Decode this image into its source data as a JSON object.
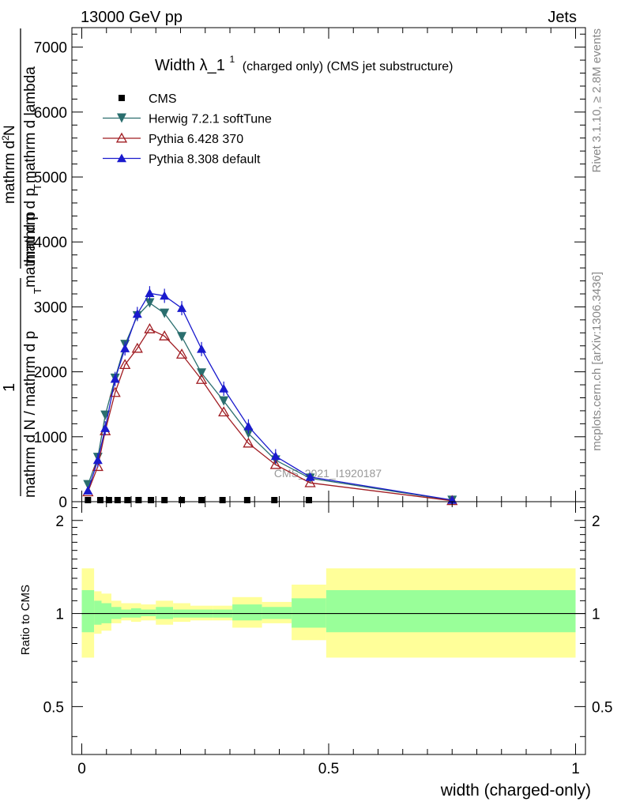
{
  "header": {
    "left": "13000 GeV pp",
    "right": "Jets"
  },
  "side": {
    "rivet": "Rivet 3.1.10, ≥ 2.8M events",
    "mcplots": "mcplots.cern.ch [arXiv:1306.3436]"
  },
  "chart_data": [
    {
      "type": "line",
      "title": "Width λ_1",
      "title_sup": "1",
      "subtitle": "(charged only) (CMS jet substructure)",
      "ylabel_numerator": "mathrm d²N",
      "ylabel_numerator_lines": [
        "mathrm d",
        "N"
      ],
      "ylabel_mid": "mathrm d p",
      "ylabel_mid_lines": [
        "mathrm d p",
        "T",
        "mathrm d lambda"
      ],
      "ylabel_denominator": "1",
      "ylabel_den_lines": [
        "mathrm d N / mathrm d p",
        "T"
      ],
      "ylabel_rest": "mathrm d p",
      "ylim": [
        0,
        7300
      ],
      "ylog": false,
      "yticks": [
        {
          "v": 0,
          "label": "0"
        },
        {
          "v": 1000,
          "label": "1000"
        },
        {
          "v": 2000,
          "label": "2000"
        },
        {
          "v": 3000,
          "label": "3000"
        },
        {
          "v": 4000,
          "label": "4000"
        },
        {
          "v": 5000,
          "label": "5000"
        },
        {
          "v": 6000,
          "label": "6000"
        },
        {
          "v": 7000,
          "label": "7000"
        }
      ],
      "watermark": "CMS_2021_I1920187",
      "legend_position": "top-left",
      "series": [
        {
          "name": "CMS",
          "marker": "square",
          "color": "#000000",
          "x": [
            0.0125,
            0.0375,
            0.055,
            0.0725,
            0.0925,
            0.115,
            0.14,
            0.1675,
            0.2025,
            0.2425,
            0.285,
            0.335,
            0.39,
            0.46
          ],
          "values": [
            0,
            0,
            0,
            0,
            0,
            0,
            0,
            0,
            0,
            0,
            0,
            0,
            0,
            0
          ]
        },
        {
          "name": "Herwig 7.2.1 softTune",
          "marker": "triangle-down",
          "color": "#2a6e6e",
          "x": [
            0.0125,
            0.0325,
            0.0475,
            0.0675,
            0.0875,
            0.1125,
            0.1375,
            0.1675,
            0.2025,
            0.2425,
            0.2875,
            0.3375,
            0.3925,
            0.4625,
            0.75
          ],
          "values": [
            260,
            680,
            1330,
            1900,
            2420,
            2860,
            3060,
            2900,
            2540,
            1980,
            1550,
            1050,
            640,
            360,
            20
          ]
        },
        {
          "name": "Pythia 6.428 370",
          "marker": "triangle-open",
          "color": "#a01c22",
          "x": [
            0.0125,
            0.0325,
            0.0475,
            0.0675,
            0.0875,
            0.1125,
            0.1375,
            0.1675,
            0.2025,
            0.2425,
            0.2875,
            0.3375,
            0.3925,
            0.4625,
            0.75
          ],
          "values": [
            150,
            540,
            1090,
            1680,
            2110,
            2360,
            2660,
            2550,
            2270,
            1880,
            1380,
            900,
            570,
            290,
            15
          ]
        },
        {
          "name": "Pythia 8.308 default",
          "marker": "triangle-up",
          "color": "#1a1acd",
          "x": [
            0.0125,
            0.0325,
            0.0475,
            0.0675,
            0.0875,
            0.1125,
            0.1375,
            0.1675,
            0.2025,
            0.2425,
            0.2875,
            0.3375,
            0.3925,
            0.4625,
            0.75
          ],
          "values": [
            170,
            640,
            1130,
            1890,
            2360,
            2890,
            3210,
            3170,
            2980,
            2350,
            1740,
            1160,
            700,
            380,
            25
          ]
        }
      ]
    },
    {
      "type": "area",
      "ylabel": "Ratio to CMS",
      "xlabel": "width (charged-only)",
      "xlim": [
        -0.02,
        1.02
      ],
      "ylim": [
        0.35,
        2.3
      ],
      "ylog": true,
      "yticks": [
        {
          "v": 0.5,
          "label": "0.5"
        },
        {
          "v": 1,
          "label": "1"
        },
        {
          "v": 2,
          "label": "2"
        }
      ],
      "xticks": [
        {
          "v": 0,
          "label": "0"
        },
        {
          "v": 0.5,
          "label": "0.5"
        },
        {
          "v": 1,
          "label": "1"
        }
      ],
      "band_colors": {
        "outer": "#ffff99",
        "inner": "#99ff99",
        "line": "#000000"
      },
      "bins": [
        {
          "lo": 0.0,
          "hi": 0.025,
          "outer": [
            0.72,
            1.4
          ],
          "inner": [
            0.87,
            1.19
          ]
        },
        {
          "lo": 0.025,
          "hi": 0.04,
          "outer": [
            0.86,
            1.18
          ],
          "inner": [
            0.92,
            1.1
          ]
        },
        {
          "lo": 0.04,
          "hi": 0.06,
          "outer": [
            0.88,
            1.16
          ],
          "inner": [
            0.93,
            1.08
          ]
        },
        {
          "lo": 0.06,
          "hi": 0.08,
          "outer": [
            0.93,
            1.1
          ],
          "inner": [
            0.96,
            1.05
          ]
        },
        {
          "lo": 0.08,
          "hi": 0.1,
          "outer": [
            0.95,
            1.08
          ],
          "inner": [
            0.97,
            1.03
          ]
        },
        {
          "lo": 0.1,
          "hi": 0.12,
          "outer": [
            0.94,
            1.08
          ],
          "inner": [
            0.97,
            1.04
          ]
        },
        {
          "lo": 0.12,
          "hi": 0.15,
          "outer": [
            0.95,
            1.07
          ],
          "inner": [
            0.98,
            1.03
          ]
        },
        {
          "lo": 0.15,
          "hi": 0.185,
          "outer": [
            0.92,
            1.1
          ],
          "inner": [
            0.96,
            1.05
          ]
        },
        {
          "lo": 0.185,
          "hi": 0.22,
          "outer": [
            0.94,
            1.08
          ],
          "inner": [
            0.97,
            1.03
          ]
        },
        {
          "lo": 0.22,
          "hi": 0.265,
          "outer": [
            0.95,
            1.06
          ],
          "inner": [
            0.97,
            1.03
          ]
        },
        {
          "lo": 0.265,
          "hi": 0.305,
          "outer": [
            0.95,
            1.06
          ],
          "inner": [
            0.97,
            1.03
          ]
        },
        {
          "lo": 0.305,
          "hi": 0.365,
          "outer": [
            0.9,
            1.13
          ],
          "inner": [
            0.95,
            1.07
          ]
        },
        {
          "lo": 0.365,
          "hi": 0.425,
          "outer": [
            0.93,
            1.09
          ],
          "inner": [
            0.96,
            1.05
          ]
        },
        {
          "lo": 0.425,
          "hi": 0.495,
          "outer": [
            0.82,
            1.24
          ],
          "inner": [
            0.9,
            1.12
          ]
        },
        {
          "lo": 0.495,
          "hi": 1.0,
          "outer": [
            0.72,
            1.4
          ],
          "inner": [
            0.87,
            1.19
          ]
        }
      ]
    }
  ]
}
